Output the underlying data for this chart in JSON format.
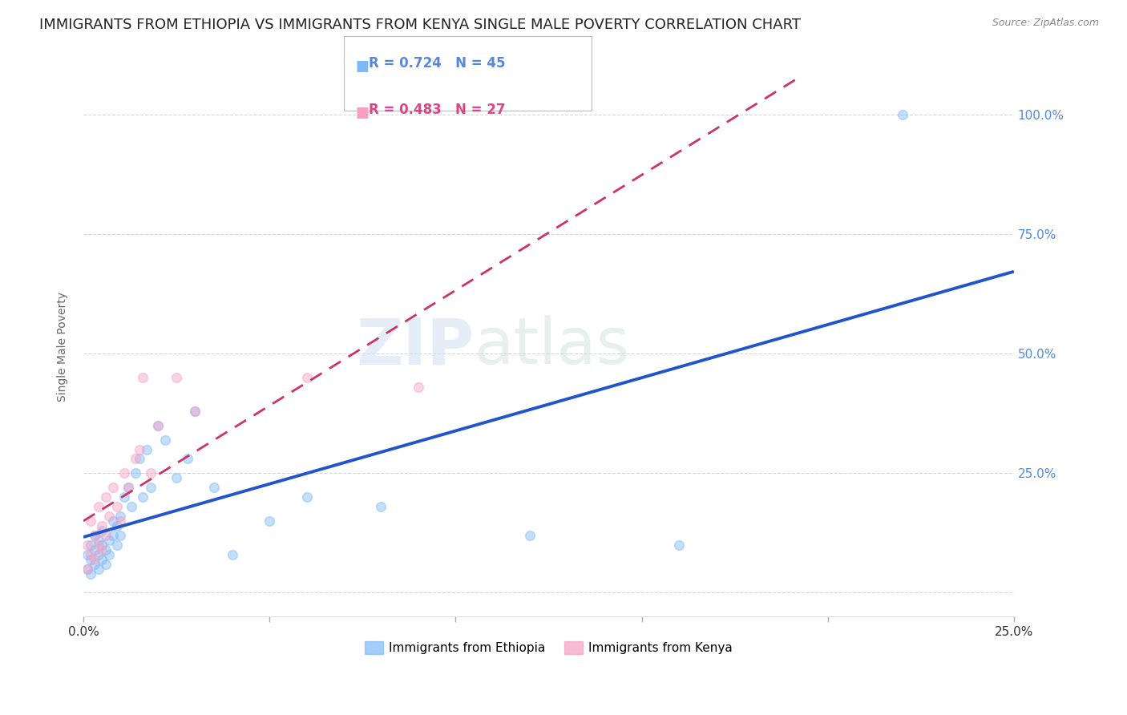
{
  "title": "IMMIGRANTS FROM ETHIOPIA VS IMMIGRANTS FROM KENYA SINGLE MALE POVERTY CORRELATION CHART",
  "source": "Source: ZipAtlas.com",
  "ylabel": "Single Male Poverty",
  "y_ticks": [
    0.0,
    0.25,
    0.5,
    0.75,
    1.0
  ],
  "y_tick_labels": [
    "",
    "25.0%",
    "50.0%",
    "75.0%",
    "100.0%"
  ],
  "x_min": 0.0,
  "x_max": 0.25,
  "y_min": -0.05,
  "y_max": 1.08,
  "color_ethiopia": "#7EB8F7",
  "color_kenya": "#F5A0C0",
  "trendline_color_ethiopia": "#2255CC",
  "trendline_color_kenya": "#CC3366",
  "background_color": "#ffffff",
  "grid_color": "#cccccc",
  "watermark_zip": "ZIP",
  "watermark_atlas": "atlas",
  "legend_label1": "Immigrants from Ethiopia",
  "legend_label2": "Immigrants from Kenya",
  "title_color": "#222222",
  "axis_label_color": "#666666",
  "tick_color_right": "#5588DD",
  "title_fontsize": 13,
  "axis_label_fontsize": 10,
  "tick_fontsize": 11,
  "marker_size": 70,
  "marker_alpha": 0.45,
  "trendline_lw_ethiopia": 2.8,
  "trendline_lw_kenya": 2.0,
  "ethiopia_x": [
    0.001,
    0.001,
    0.002,
    0.002,
    0.002,
    0.003,
    0.003,
    0.003,
    0.004,
    0.004,
    0.004,
    0.005,
    0.005,
    0.005,
    0.006,
    0.006,
    0.007,
    0.007,
    0.008,
    0.008,
    0.009,
    0.009,
    0.01,
    0.01,
    0.011,
    0.012,
    0.013,
    0.014,
    0.015,
    0.016,
    0.017,
    0.018,
    0.02,
    0.022,
    0.025,
    0.028,
    0.03,
    0.035,
    0.04,
    0.05,
    0.06,
    0.08,
    0.12,
    0.16,
    0.22
  ],
  "ethiopia_y": [
    0.05,
    0.08,
    0.04,
    0.1,
    0.07,
    0.06,
    0.09,
    0.12,
    0.05,
    0.11,
    0.08,
    0.07,
    0.1,
    0.13,
    0.09,
    0.06,
    0.11,
    0.08,
    0.12,
    0.15,
    0.1,
    0.14,
    0.12,
    0.16,
    0.2,
    0.22,
    0.18,
    0.25,
    0.28,
    0.2,
    0.3,
    0.22,
    0.35,
    0.32,
    0.24,
    0.28,
    0.38,
    0.22,
    0.08,
    0.15,
    0.2,
    0.18,
    0.12,
    0.1,
    1.0
  ],
  "kenya_x": [
    0.001,
    0.001,
    0.002,
    0.002,
    0.003,
    0.003,
    0.004,
    0.004,
    0.005,
    0.005,
    0.006,
    0.006,
    0.007,
    0.008,
    0.009,
    0.01,
    0.011,
    0.012,
    0.014,
    0.015,
    0.016,
    0.018,
    0.02,
    0.025,
    0.03,
    0.06,
    0.09
  ],
  "kenya_y": [
    0.05,
    0.1,
    0.08,
    0.15,
    0.07,
    0.12,
    0.1,
    0.18,
    0.09,
    0.14,
    0.12,
    0.2,
    0.16,
    0.22,
    0.18,
    0.15,
    0.25,
    0.22,
    0.28,
    0.3,
    0.45,
    0.25,
    0.35,
    0.45,
    0.38,
    0.45,
    0.43
  ]
}
